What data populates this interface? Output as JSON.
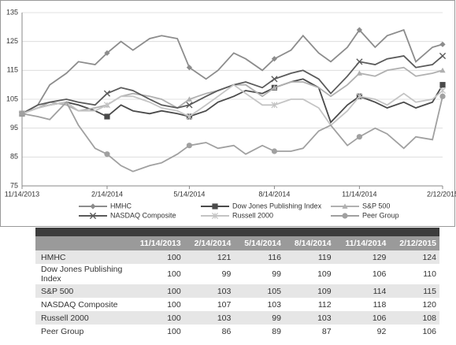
{
  "chart_data": {
    "type": "line",
    "x": [
      "11/14/2013",
      "12/1/2013",
      "12/14/2013",
      "1/1/2014",
      "1/14/2014",
      "2/1/2014",
      "2/14/2014",
      "3/1/2014",
      "3/14/2014",
      "4/1/2014",
      "4/14/2014",
      "5/1/2014",
      "5/14/2014",
      "6/1/2014",
      "6/14/2014",
      "7/1/2014",
      "7/14/2014",
      "8/1/2014",
      "8/14/2014",
      "9/1/2014",
      "9/14/2014",
      "10/1/2014",
      "10/14/2014",
      "11/1/2014",
      "11/14/2014",
      "12/1/2014",
      "12/14/2014",
      "1/1/2015",
      "1/14/2015",
      "2/1/2015",
      "2/12/2015"
    ],
    "xlim": [
      "11/14/2013",
      "2/12/2015"
    ],
    "xticks": [
      "11/14/2013",
      "2/14/2014",
      "5/14/2014",
      "8/14/2014",
      "11/14/2014",
      "2/12/2015"
    ],
    "ylim": [
      75,
      135
    ],
    "yticks": [
      75,
      85,
      95,
      105,
      115,
      125,
      135
    ],
    "grid": true,
    "series": [
      {
        "name": "HMHC",
        "color": "#8c8c8c",
        "marker": "diamond",
        "values": [
          100,
          103,
          110,
          114,
          118,
          117,
          121,
          125,
          122,
          126,
          127,
          126,
          116,
          112,
          115,
          121,
          119,
          115,
          119,
          122,
          127,
          121,
          118,
          123,
          129,
          123,
          127,
          129,
          118,
          123,
          124
        ]
      },
      {
        "name": "Dow Jones Publishing Index",
        "color": "#4a4a4a",
        "marker": "square",
        "values": [
          100,
          102,
          103,
          104,
          103,
          101,
          99,
          103,
          101,
          100,
          101,
          100,
          99,
          101,
          104,
          106,
          108,
          107,
          109,
          111,
          112,
          109,
          97,
          103,
          106,
          104,
          102,
          104,
          102,
          104,
          110
        ]
      },
      {
        "name": "S&P 500",
        "color": "#b0b0b0",
        "marker": "triangle",
        "values": [
          100,
          102,
          104,
          103,
          101,
          102,
          103,
          106,
          107,
          106,
          105,
          102,
          105,
          107,
          108,
          110,
          110,
          106,
          109,
          111,
          111,
          109,
          106,
          110,
          114,
          113,
          115,
          116,
          113,
          114,
          115
        ]
      },
      {
        "name": "NASDAQ Composite",
        "color": "#5a5a5a",
        "marker": "cross",
        "values": [
          100,
          103,
          104,
          105,
          104,
          103,
          107,
          109,
          108,
          105,
          103,
          102,
          103,
          106,
          108,
          110,
          111,
          109,
          112,
          114,
          115,
          112,
          107,
          113,
          118,
          117,
          119,
          120,
          116,
          117,
          120
        ]
      },
      {
        "name": "Russell 2000",
        "color": "#c4c4c4",
        "marker": "star",
        "values": [
          100,
          102,
          103,
          104,
          101,
          101,
          103,
          106,
          106,
          104,
          102,
          101,
          99,
          103,
          106,
          110,
          107,
          103,
          103,
          105,
          105,
          102,
          96,
          101,
          106,
          105,
          103,
          107,
          104,
          105,
          108
        ]
      },
      {
        "name": "Peer Group",
        "color": "#a0a0a0",
        "marker": "circle",
        "values": [
          100,
          99,
          98,
          104,
          96,
          88,
          86,
          82,
          80,
          82,
          83,
          86,
          89,
          90,
          88,
          89,
          86,
          89,
          87,
          87,
          88,
          94,
          96,
          89,
          92,
          95,
          93,
          88,
          92,
          91,
          106
        ]
      }
    ]
  },
  "table": {
    "header": [
      "11/14/2013",
      "2/14/2014",
      "5/14/2014",
      "8/14/2014",
      "11/14/2014",
      "2/12/2015"
    ],
    "rows": [
      [
        "HMHC",
        100,
        121,
        116,
        119,
        129,
        124
      ],
      [
        "Dow Jones Publishing Index",
        100,
        99,
        99,
        109,
        106,
        110
      ],
      [
        "S&P 500",
        100,
        103,
        105,
        109,
        114,
        115
      ],
      [
        "NASDAQ Composite",
        100,
        107,
        103,
        112,
        118,
        120
      ],
      [
        "Russell 2000",
        100,
        103,
        99,
        103,
        106,
        108
      ],
      [
        "Peer Group",
        100,
        86,
        89,
        87,
        92,
        106
      ]
    ]
  }
}
